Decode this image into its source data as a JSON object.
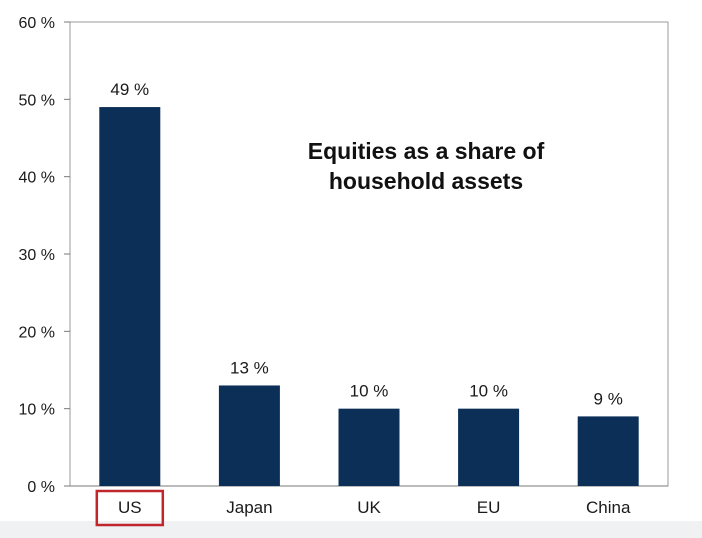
{
  "chart_data": {
    "type": "bar",
    "title": "Equities as a share of household assets",
    "categories": [
      "US",
      "Japan",
      "UK",
      "EU",
      "China"
    ],
    "values": [
      49,
      13,
      10,
      10,
      9
    ],
    "data_labels": [
      "49 %",
      "13 %",
      "10 %",
      "10 %",
      "9 %"
    ],
    "y_ticks": [
      0,
      10,
      20,
      30,
      40,
      50,
      60
    ],
    "y_tick_labels": [
      "0 %",
      "10 %",
      "20 %",
      "30 %",
      "40 %",
      "50 %",
      "60 %"
    ],
    "ylim": [
      0,
      60
    ],
    "xlabel": "",
    "ylabel": "",
    "grid": false,
    "bar_color": "#0b2f57",
    "highlight_category": "US",
    "highlight_color": "#c0272d"
  }
}
